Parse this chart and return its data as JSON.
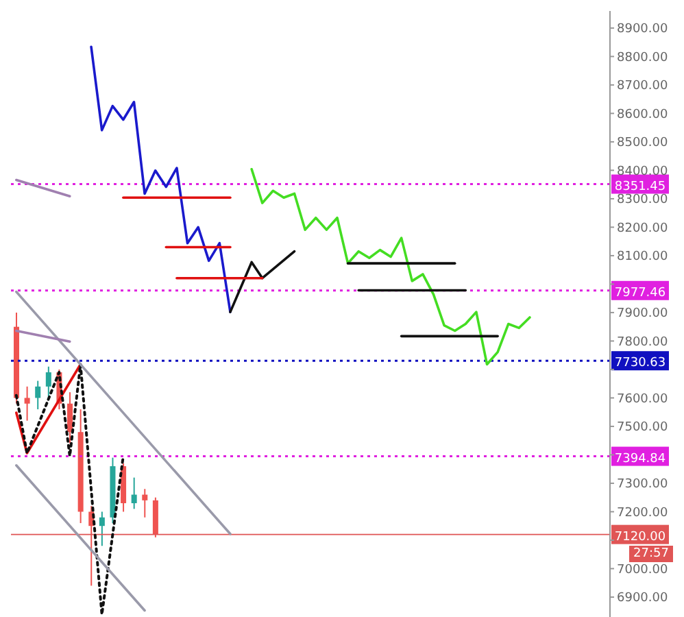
{
  "chart_data": {
    "type": "candlestick",
    "categories": [
      null,
      null,
      null,
      null,
      null,
      null,
      null,
      null,
      null,
      null,
      null,
      null,
      null,
      null,
      null,
      null,
      null,
      null,
      null,
      null,
      null,
      null,
      null,
      null,
      null,
      null,
      null,
      null,
      null,
      null,
      null,
      null,
      null,
      null,
      null,
      null,
      null,
      null,
      null,
      null,
      null,
      null,
      null,
      null,
      null,
      null,
      null,
      null,
      null,
      null,
      null,
      null,
      null,
      null,
      null,
      null
    ],
    "ohlc": [
      [
        7850,
        7900,
        7580,
        7600
      ],
      [
        7600,
        7640,
        7520,
        7580
      ],
      [
        7600,
        7660,
        7560,
        7640
      ],
      [
        7640,
        7710,
        7600,
        7690
      ],
      [
        7690,
        7700,
        7560,
        7580
      ],
      [
        7580,
        7620,
        7440,
        7480
      ],
      [
        7480,
        7560,
        7160,
        7200
      ],
      [
        7200,
        7220,
        6940,
        7150
      ],
      [
        7150,
        7200,
        7080,
        7180
      ],
      [
        7180,
        7390,
        7160,
        7360
      ],
      [
        7360,
        7370,
        7200,
        7230
      ],
      [
        7230,
        7320,
        7210,
        7260
      ],
      [
        7260,
        7280,
        7180,
        7240
      ],
      [
        7240,
        7250,
        7110,
        7120
      ],
      null,
      null,
      null,
      null,
      null,
      null,
      null,
      null,
      null,
      null,
      null,
      null,
      null,
      null,
      null,
      null,
      null,
      null,
      null,
      null,
      null,
      null,
      null,
      null,
      null,
      null,
      null,
      null,
      null,
      null,
      null,
      null,
      null,
      null,
      null,
      null,
      null,
      null,
      null,
      null,
      null,
      null
    ],
    "colors": [
      "#ef5350",
      "#ef5350",
      "#26a69a",
      "#26a69a",
      "#ef5350",
      "#ef5350",
      "#ef5350",
      "#ef5350",
      "#26a69a",
      "#26a69a",
      "#ef5350",
      "#26a69a",
      "#ef5350",
      "#ef5350",
      null,
      null,
      null,
      null,
      null,
      null,
      null,
      null,
      null,
      null,
      null,
      null,
      null,
      null,
      null,
      null,
      null,
      null,
      null,
      null,
      null,
      null,
      null,
      null,
      null,
      null,
      null,
      null,
      null,
      null,
      null,
      null,
      null,
      null,
      null,
      null,
      null,
      null,
      null,
      null,
      null,
      null
    ],
    "series": [
      {
        "type": "line",
        "color": "#1a1acc",
        "values": [
          null,
          null,
          null,
          null,
          null,
          null,
          null,
          8834,
          8541,
          8626,
          8578,
          8640,
          8318,
          8399,
          8342,
          8408,
          8144,
          8200,
          8082,
          8144,
          7902,
          null,
          null,
          null,
          null,
          null,
          null,
          null,
          null,
          null,
          null,
          null,
          null,
          null,
          null,
          null,
          null,
          null,
          null,
          null,
          null,
          null,
          null,
          null,
          null,
          null,
          null,
          null,
          null,
          null,
          null,
          null,
          null,
          null,
          null,
          null
        ]
      },
      {
        "type": "line",
        "color": "#111111",
        "values": [
          null,
          null,
          null,
          null,
          null,
          null,
          null,
          null,
          null,
          null,
          null,
          null,
          null,
          null,
          null,
          null,
          null,
          null,
          null,
          null,
          7902,
          null,
          8077,
          8021,
          null,
          null,
          8115,
          null,
          null,
          null,
          null,
          null,
          null,
          null,
          null,
          null,
          null,
          null,
          null,
          null,
          null,
          null,
          null,
          null,
          null,
          null,
          null,
          null,
          null,
          null,
          null,
          null,
          null,
          null,
          null,
          null
        ]
      },
      {
        "type": "line",
        "color": "#44dd22",
        "values": [
          null,
          null,
          null,
          null,
          null,
          null,
          null,
          null,
          null,
          null,
          null,
          null,
          null,
          null,
          null,
          null,
          null,
          null,
          null,
          null,
          null,
          null,
          8404,
          8285,
          8328,
          8304,
          8318,
          8191,
          8233,
          8191,
          8233,
          8073,
          8115,
          8092,
          8120,
          8096,
          8162,
          8011,
          8035,
          7964,
          7855,
          7836,
          7860,
          7902,
          7718,
          7761,
          7860,
          7846,
          7883,
          null,
          null,
          null,
          null,
          null,
          null,
          null
        ]
      },
      {
        "type": "line",
        "color": "#e01010",
        "values": [
          null,
          null,
          null,
          null,
          null,
          null,
          null,
          null,
          null,
          null,
          8304,
          null,
          null,
          null,
          null,
          null,
          null,
          null,
          null,
          null,
          8304,
          null,
          null,
          null,
          null,
          null,
          null,
          null,
          null,
          null,
          null,
          null,
          null,
          null,
          null,
          null,
          null,
          null,
          null,
          null,
          null,
          null,
          null,
          null,
          null,
          null,
          null,
          null,
          null,
          null,
          null,
          null,
          null,
          null,
          null,
          null
        ]
      },
      {
        "type": "line",
        "color": "#e01010",
        "values": [
          null,
          null,
          null,
          null,
          null,
          null,
          null,
          null,
          null,
          null,
          null,
          null,
          null,
          null,
          8130,
          null,
          null,
          null,
          null,
          null,
          8130,
          null,
          null,
          null,
          null,
          null,
          null,
          null,
          null,
          null,
          null,
          null,
          null,
          null,
          null,
          null,
          null,
          null,
          null,
          null,
          null,
          null,
          null,
          null,
          null,
          null,
          null,
          null,
          null,
          null,
          null,
          null,
          null,
          null,
          null,
          null
        ]
      },
      {
        "type": "line",
        "color": "#e01010",
        "values": [
          null,
          null,
          null,
          null,
          null,
          null,
          null,
          null,
          null,
          null,
          null,
          null,
          null,
          null,
          null,
          8021,
          null,
          null,
          null,
          null,
          null,
          null,
          null,
          8021,
          null,
          null,
          null,
          null,
          null,
          null,
          null,
          null,
          null,
          null,
          null,
          null,
          null,
          null,
          null,
          null,
          null,
          null,
          null,
          null,
          null,
          null,
          null,
          null,
          null,
          null,
          null,
          null,
          null,
          null,
          null,
          null
        ]
      },
      {
        "type": "line",
        "color": "#111111",
        "values": [
          null,
          null,
          null,
          null,
          null,
          null,
          null,
          null,
          null,
          null,
          null,
          null,
          null,
          null,
          null,
          null,
          null,
          null,
          null,
          null,
          null,
          null,
          null,
          null,
          null,
          null,
          null,
          null,
          null,
          null,
          null,
          8073,
          null,
          null,
          null,
          null,
          null,
          null,
          null,
          null,
          null,
          8073,
          null,
          null,
          null,
          null,
          null,
          null,
          null,
          null,
          null,
          null,
          null,
          null,
          null,
          null
        ]
      },
      {
        "type": "line",
        "color": "#111111",
        "values": [
          null,
          null,
          null,
          null,
          null,
          null,
          null,
          null,
          null,
          null,
          null,
          null,
          null,
          null,
          null,
          null,
          null,
          null,
          null,
          null,
          null,
          null,
          null,
          null,
          null,
          null,
          null,
          null,
          null,
          null,
          null,
          null,
          7978,
          null,
          null,
          null,
          null,
          null,
          null,
          null,
          null,
          null,
          7978,
          null,
          null,
          null,
          null,
          null,
          null,
          null,
          null,
          null,
          null,
          null,
          null,
          null
        ]
      },
      {
        "type": "line",
        "color": "#111111",
        "values": [
          null,
          null,
          null,
          null,
          null,
          null,
          null,
          null,
          null,
          null,
          null,
          null,
          null,
          null,
          null,
          null,
          null,
          null,
          null,
          null,
          null,
          null,
          null,
          null,
          null,
          null,
          null,
          null,
          null,
          null,
          null,
          null,
          null,
          null,
          null,
          null,
          7817,
          null,
          null,
          null,
          null,
          null,
          null,
          null,
          null,
          7817,
          null,
          null,
          null,
          null,
          null,
          null,
          null,
          null,
          null,
          null
        ]
      },
      {
        "type": "line",
        "color": "#e01010",
        "values": [
          7548,
          7406,
          null,
          null,
          null,
          null,
          7718,
          null,
          null,
          null,
          null,
          null,
          null,
          null,
          null,
          null,
          null,
          null,
          null,
          null,
          null,
          null,
          null,
          null,
          null,
          null,
          null,
          null,
          null,
          null,
          null,
          null,
          null,
          null,
          null,
          null,
          null,
          null,
          null,
          null,
          null,
          null,
          null,
          null,
          null,
          null,
          null,
          null,
          null,
          null,
          null,
          null,
          null,
          null,
          null,
          null
        ]
      },
      {
        "type": "line",
        "color": "#111111",
        "line_style": "dotted",
        "values": [
          7609,
          7406,
          null,
          null,
          7690,
          7396,
          7718,
          null,
          6839,
          null,
          7396,
          null,
          null,
          null,
          null,
          null,
          null,
          null,
          null,
          null,
          null,
          null,
          null,
          null,
          null,
          null,
          null,
          null,
          null,
          null,
          null,
          null,
          null,
          null,
          null,
          null,
          null,
          null,
          null,
          null,
          null,
          null,
          null,
          null,
          null,
          null,
          null,
          null,
          null,
          null,
          null,
          null,
          null,
          null,
          null,
          null
        ]
      },
      {
        "type": "line",
        "color": "#9a9aaa",
        "values": [
          7973,
          null,
          null,
          null,
          null,
          null,
          null,
          null,
          null,
          null,
          null,
          null,
          null,
          null,
          null,
          null,
          null,
          null,
          null,
          null,
          7122,
          null,
          null,
          null,
          null,
          null,
          null,
          null,
          null,
          null,
          null,
          null,
          null,
          null,
          null,
          null,
          null,
          null,
          null,
          null,
          null,
          null,
          null,
          null,
          null,
          null,
          null,
          null,
          null,
          null,
          null,
          null,
          null,
          null,
          null,
          null
        ]
      },
      {
        "type": "line",
        "color": "#9a9aaa",
        "values": [
          7363,
          null,
          null,
          null,
          null,
          null,
          null,
          null,
          null,
          null,
          null,
          null,
          6853,
          null,
          null,
          null,
          null,
          null,
          null,
          null,
          null,
          null,
          null,
          null,
          null,
          null,
          null,
          null,
          null,
          null,
          null,
          null,
          null,
          null,
          null,
          null,
          null,
          null,
          null,
          null,
          null,
          null,
          null,
          null,
          null,
          null,
          null,
          null,
          null,
          null,
          null,
          null,
          null,
          null,
          null,
          null
        ]
      },
      {
        "type": "line",
        "color": "#a080b0",
        "values": [
          8366,
          null,
          null,
          null,
          null,
          8309,
          null,
          null,
          null,
          null,
          null,
          null,
          null,
          null,
          null,
          null,
          null,
          null,
          null,
          null,
          null,
          null,
          null,
          null,
          null,
          null,
          null,
          null,
          null,
          null,
          null,
          null,
          null,
          null,
          null,
          null,
          null,
          null,
          null,
          null,
          null,
          null,
          null,
          null,
          null,
          null,
          null,
          null,
          null,
          null,
          null,
          null,
          null,
          null,
          null,
          null
        ]
      },
      {
        "type": "line",
        "color": "#a080b0",
        "values": [
          7836,
          null,
          null,
          null,
          null,
          7798,
          null,
          null,
          null,
          null,
          null,
          null,
          null,
          null,
          null,
          null,
          null,
          null,
          null,
          null,
          null,
          null,
          null,
          null,
          null,
          null,
          null,
          null,
          null,
          null,
          null,
          null,
          null,
          null,
          null,
          null,
          null,
          null,
          null,
          null,
          null,
          null,
          null,
          null,
          null,
          null,
          null,
          null,
          null,
          null,
          null,
          null,
          null,
          null,
          null,
          null
        ]
      }
    ],
    "ylim": [
      6830,
      8960
    ],
    "yticks": [
      {
        "value": 6900,
        "label": "6900.00"
      },
      {
        "value": 7000,
        "label": "7000.00"
      },
      {
        "value": 7100,
        "label": null
      },
      {
        "value": 7200,
        "label": "7200.00"
      },
      {
        "value": 7300,
        "label": "7300.00"
      },
      {
        "value": 7400,
        "label": null
      },
      {
        "value": 7500,
        "label": "7500.00"
      },
      {
        "value": 7600,
        "label": "7600.00"
      },
      {
        "value": 7700,
        "label": null
      },
      {
        "value": 7800,
        "label": "7800.00"
      },
      {
        "value": 7900,
        "label": "7900.00"
      },
      {
        "value": 8000,
        "label": null
      },
      {
        "value": 8100,
        "label": "8100.00"
      },
      {
        "value": 8200,
        "label": "8200.00"
      },
      {
        "value": 8300,
        "label": "8300.00"
      },
      {
        "value": 8400,
        "label": "8400.00"
      },
      {
        "value": 8500,
        "label": "8500.00"
      },
      {
        "value": 8600,
        "label": "8600.00"
      },
      {
        "value": 8700,
        "label": "8700.00"
      },
      {
        "value": 8800,
        "label": "8800.00"
      },
      {
        "value": 8900,
        "label": "8900.00"
      }
    ],
    "ref_lines": [
      {
        "axis": "y",
        "value": 8351.45,
        "label": "8351.45",
        "color": "#e020e0",
        "line_style": "dotted"
      },
      {
        "axis": "y",
        "value": 7977.46,
        "label": "7977.46",
        "color": "#e020e0",
        "line_style": "dotted"
      },
      {
        "axis": "y",
        "value": 7730.63,
        "label": "7730.63",
        "color": "#1010c0",
        "line_style": "dotted"
      },
      {
        "axis": "y",
        "value": 7394.84,
        "label": "7394.84",
        "color": "#e020e0",
        "line_style": "dotted"
      },
      {
        "axis": "y",
        "value": 7120,
        "label": "7120.00",
        "color": "#e05555",
        "line_style": "solid"
      }
    ],
    "annotations": [
      "27:57"
    ],
    "tick_labels": "y"
  }
}
